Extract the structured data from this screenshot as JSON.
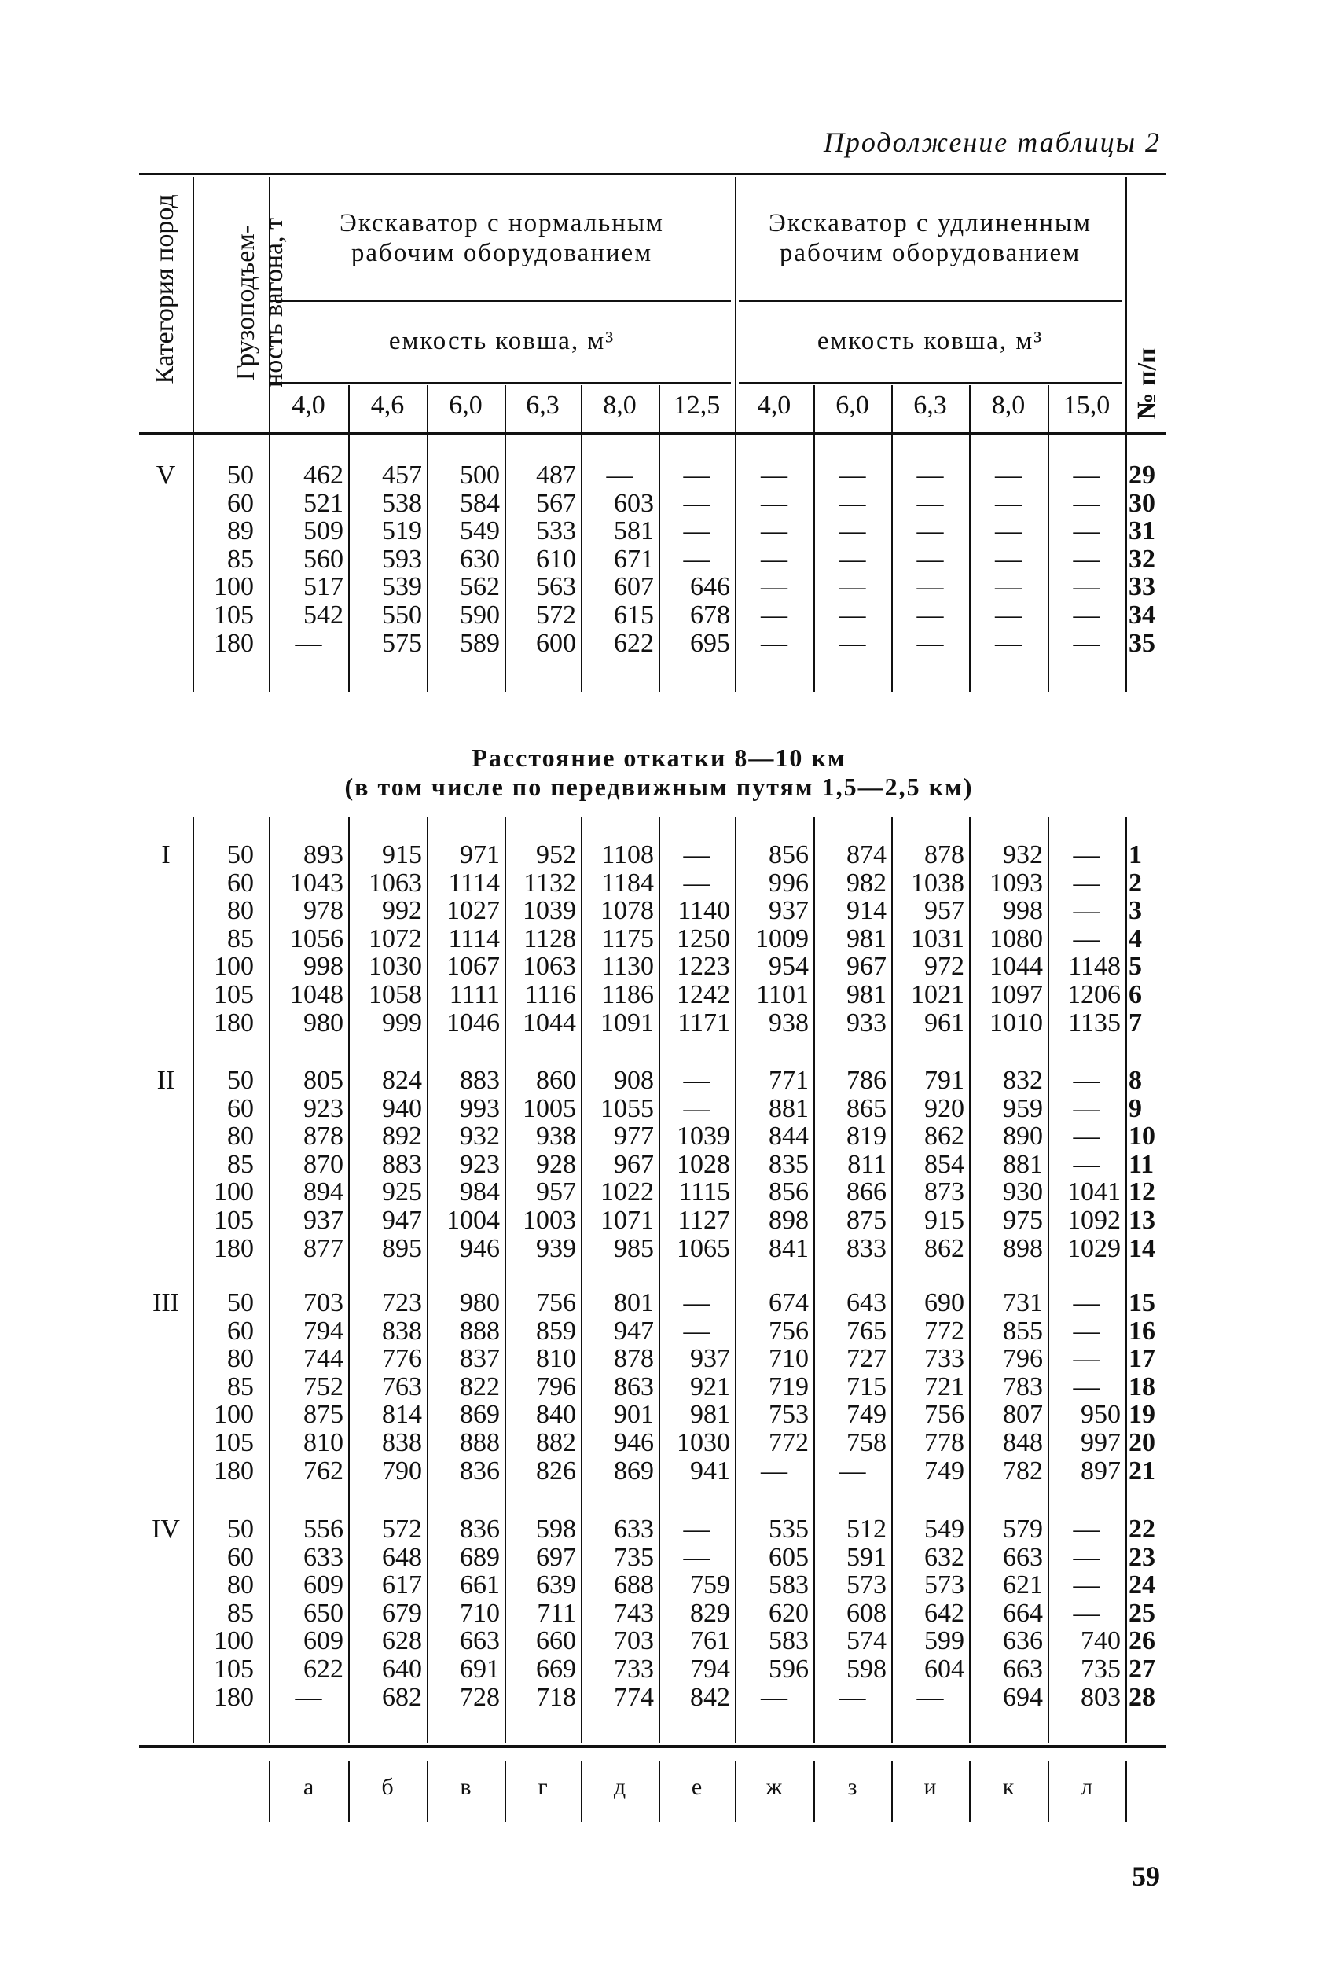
{
  "continuation": "Продолжение таблицы 2",
  "header": {
    "category": "Категория пород",
    "capacity_line1": "Грузоподъем-",
    "capacity_line2": "ность вагона, т",
    "number": "№ п/п",
    "normal_group_line1": "Экскаватор с нормальным",
    "normal_group_line2": "рабочим оборудованием",
    "extended_group_line1": "Экскаватор с удлиненным",
    "extended_group_line2": "рабочим оборудованием",
    "bucket_normal": "емкость ковша, м³",
    "bucket_extended": "емкость ковша, м³",
    "sizes": [
      "4,0",
      "4,6",
      "6,0",
      "6,3",
      "8,0",
      "12,5",
      "4,0",
      "6,0",
      "6,3",
      "8,0",
      "15,0"
    ]
  },
  "top_sections": [
    {
      "category": "V",
      "rows": [
        {
          "cap": "50",
          "v": [
            "462",
            "457",
            "500",
            "487",
            "—",
            "—",
            "—",
            "—",
            "—",
            "—",
            "—"
          ],
          "no": "29"
        },
        {
          "cap": "60",
          "v": [
            "521",
            "538",
            "584",
            "567",
            "603",
            "—",
            "—",
            "—",
            "—",
            "—",
            "—"
          ],
          "no": "30"
        },
        {
          "cap": "89",
          "v": [
            "509",
            "519",
            "549",
            "533",
            "581",
            "—",
            "—",
            "—",
            "—",
            "—",
            "—"
          ],
          "no": "31"
        },
        {
          "cap": "85",
          "v": [
            "560",
            "593",
            "630",
            "610",
            "671",
            "—",
            "—",
            "—",
            "—",
            "—",
            "—"
          ],
          "no": "32"
        },
        {
          "cap": "100",
          "v": [
            "517",
            "539",
            "562",
            "563",
            "607",
            "646",
            "—",
            "—",
            "—",
            "—",
            "—"
          ],
          "no": "33"
        },
        {
          "cap": "105",
          "v": [
            "542",
            "550",
            "590",
            "572",
            "615",
            "678",
            "—",
            "—",
            "—",
            "—",
            "—"
          ],
          "no": "34"
        },
        {
          "cap": "180",
          "v": [
            "—",
            "575",
            "589",
            "600",
            "622",
            "695",
            "—",
            "—",
            "—",
            "—",
            "—"
          ],
          "no": "35"
        }
      ]
    }
  ],
  "subtitle_line1": "Расстояние откатки 8—10 км",
  "subtitle_line2": "(в том числе по передвижным путям 1,5—2,5 км)",
  "bottom_sections": [
    {
      "category": "I",
      "rows": [
        {
          "cap": "50",
          "v": [
            "893",
            "915",
            "971",
            "952",
            "1108",
            "—",
            "856",
            "874",
            "878",
            "932",
            "—"
          ],
          "no": "1"
        },
        {
          "cap": "60",
          "v": [
            "1043",
            "1063",
            "1114",
            "1132",
            "1184",
            "—",
            "996",
            "982",
            "1038",
            "1093",
            "—"
          ],
          "no": "2"
        },
        {
          "cap": "80",
          "v": [
            "978",
            "992",
            "1027",
            "1039",
            "1078",
            "1140",
            "937",
            "914",
            "957",
            "998",
            "—"
          ],
          "no": "3"
        },
        {
          "cap": "85",
          "v": [
            "1056",
            "1072",
            "1114",
            "1128",
            "1175",
            "1250",
            "1009",
            "981",
            "1031",
            "1080",
            "—"
          ],
          "no": "4"
        },
        {
          "cap": "100",
          "v": [
            "998",
            "1030",
            "1067",
            "1063",
            "1130",
            "1223",
            "954",
            "967",
            "972",
            "1044",
            "1148"
          ],
          "no": "5"
        },
        {
          "cap": "105",
          "v": [
            "1048",
            "1058",
            "1111",
            "1116",
            "1186",
            "1242",
            "1101",
            "981",
            "1021",
            "1097",
            "1206"
          ],
          "no": "6"
        },
        {
          "cap": "180",
          "v": [
            "980",
            "999",
            "1046",
            "1044",
            "1091",
            "1171",
            "938",
            "933",
            "961",
            "1010",
            "1135"
          ],
          "no": "7"
        }
      ]
    },
    {
      "category": "II",
      "rows": [
        {
          "cap": "50",
          "v": [
            "805",
            "824",
            "883",
            "860",
            "908",
            "—",
            "771",
            "786",
            "791",
            "832",
            "—"
          ],
          "no": "8"
        },
        {
          "cap": "60",
          "v": [
            "923",
            "940",
            "993",
            "1005",
            "1055",
            "—",
            "881",
            "865",
            "920",
            "959",
            "—"
          ],
          "no": "9"
        },
        {
          "cap": "80",
          "v": [
            "878",
            "892",
            "932",
            "938",
            "977",
            "1039",
            "844",
            "819",
            "862",
            "890",
            "—"
          ],
          "no": "10"
        },
        {
          "cap": "85",
          "v": [
            "870",
            "883",
            "923",
            "928",
            "967",
            "1028",
            "835",
            "811",
            "854",
            "881",
            "—"
          ],
          "no": "11"
        },
        {
          "cap": "100",
          "v": [
            "894",
            "925",
            "984",
            "957",
            "1022",
            "1115",
            "856",
            "866",
            "873",
            "930",
            "1041"
          ],
          "no": "12"
        },
        {
          "cap": "105",
          "v": [
            "937",
            "947",
            "1004",
            "1003",
            "1071",
            "1127",
            "898",
            "875",
            "915",
            "975",
            "1092"
          ],
          "no": "13"
        },
        {
          "cap": "180",
          "v": [
            "877",
            "895",
            "946",
            "939",
            "985",
            "1065",
            "841",
            "833",
            "862",
            "898",
            "1029"
          ],
          "no": "14"
        }
      ]
    },
    {
      "category": "III",
      "rows": [
        {
          "cap": "50",
          "v": [
            "703",
            "723",
            "980",
            "756",
            "801",
            "—",
            "674",
            "643",
            "690",
            "731",
            "—"
          ],
          "no": "15"
        },
        {
          "cap": "60",
          "v": [
            "794",
            "838",
            "888",
            "859",
            "947",
            "—",
            "756",
            "765",
            "772",
            "855",
            "—"
          ],
          "no": "16"
        },
        {
          "cap": "80",
          "v": [
            "744",
            "776",
            "837",
            "810",
            "878",
            "937",
            "710",
            "727",
            "733",
            "796",
            "—"
          ],
          "no": "17"
        },
        {
          "cap": "85",
          "v": [
            "752",
            "763",
            "822",
            "796",
            "863",
            "921",
            "719",
            "715",
            "721",
            "783",
            "—"
          ],
          "no": "18"
        },
        {
          "cap": "100",
          "v": [
            "875",
            "814",
            "869",
            "840",
            "901",
            "981",
            "753",
            "749",
            "756",
            "807",
            "950"
          ],
          "no": "19"
        },
        {
          "cap": "105",
          "v": [
            "810",
            "838",
            "888",
            "882",
            "946",
            "1030",
            "772",
            "758",
            "778",
            "848",
            "997"
          ],
          "no": "20"
        },
        {
          "cap": "180",
          "v": [
            "762",
            "790",
            "836",
            "826",
            "869",
            "941",
            "—",
            "—",
            "749",
            "782",
            "897"
          ],
          "no": "21"
        }
      ]
    },
    {
      "category": "IV",
      "rows": [
        {
          "cap": "50",
          "v": [
            "556",
            "572",
            "836",
            "598",
            "633",
            "—",
            "535",
            "512",
            "549",
            "579",
            "—"
          ],
          "no": "22"
        },
        {
          "cap": "60",
          "v": [
            "633",
            "648",
            "689",
            "697",
            "735",
            "—",
            "605",
            "591",
            "632",
            "663",
            "—"
          ],
          "no": "23"
        },
        {
          "cap": "80",
          "v": [
            "609",
            "617",
            "661",
            "639",
            "688",
            "759",
            "583",
            "573",
            "573",
            "621",
            "—"
          ],
          "no": "24"
        },
        {
          "cap": "85",
          "v": [
            "650",
            "679",
            "710",
            "711",
            "743",
            "829",
            "620",
            "608",
            "642",
            "664",
            "—"
          ],
          "no": "25"
        },
        {
          "cap": "100",
          "v": [
            "609",
            "628",
            "663",
            "660",
            "703",
            "761",
            "583",
            "574",
            "599",
            "636",
            "740"
          ],
          "no": "26"
        },
        {
          "cap": "105",
          "v": [
            "622",
            "640",
            "691",
            "669",
            "733",
            "794",
            "596",
            "598",
            "604",
            "663",
            "735"
          ],
          "no": "27"
        },
        {
          "cap": "180",
          "v": [
            "—",
            "682",
            "728",
            "718",
            "774",
            "842",
            "—",
            "—",
            "—",
            "694",
            "803"
          ],
          "no": "28"
        }
      ]
    }
  ],
  "column_letters": [
    "а",
    "б",
    "в",
    "г",
    "д",
    "е",
    "ж",
    "з",
    "и",
    "к",
    "л"
  ],
  "page_number": "59"
}
